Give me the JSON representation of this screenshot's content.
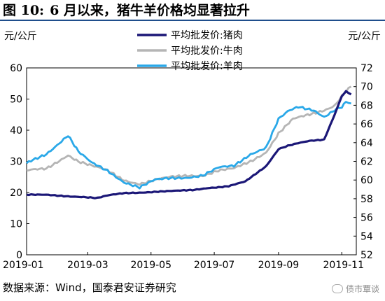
{
  "figure": {
    "title_no": "图 10:",
    "title_text": "6 月以来，猪牛羊价格均显著拉升",
    "source": "数据来源：Wind，国泰君安证券研究",
    "watermark": "债市覃谈"
  },
  "chart_data": {
    "type": "line",
    "left_unit": "元/公斤",
    "right_unit": "元/公斤",
    "ylim_left": [
      0,
      60
    ],
    "yticks_left": [
      0,
      10,
      20,
      30,
      40,
      50,
      60
    ],
    "ylim_right": [
      52,
      72
    ],
    "yticks_right": [
      52,
      54,
      56,
      58,
      60,
      62,
      64,
      66,
      68,
      70,
      72
    ],
    "xlim": [
      "2019-01-01",
      "2019-11-15"
    ],
    "xticks": [
      "2019-01",
      "2019-03",
      "2019-05",
      "2019-07",
      "2019-09",
      "2019-11"
    ],
    "grid": false,
    "legend_position": "top-right",
    "series": [
      {
        "name": "平均批发价:猪肉",
        "axis": "left",
        "color": "#1b1777",
        "x": [
          "2019-01-01",
          "2019-01-20",
          "2019-02-10",
          "2019-02-25",
          "2019-03-10",
          "2019-03-20",
          "2019-04-05",
          "2019-04-20",
          "2019-05-10",
          "2019-05-25",
          "2019-06-10",
          "2019-06-25",
          "2019-07-05",
          "2019-07-15",
          "2019-07-31",
          "2019-08-10",
          "2019-08-20",
          "2019-09-01",
          "2019-09-10",
          "2019-09-20",
          "2019-10-01",
          "2019-10-15",
          "2019-10-25",
          "2019-11-01",
          "2019-11-05",
          "2019-11-10"
        ],
        "values": [
          19.3,
          19.2,
          18.8,
          18.6,
          18.2,
          19.0,
          19.8,
          20.0,
          20.3,
          20.5,
          20.8,
          21.5,
          21.7,
          22.0,
          23.5,
          26.0,
          28.5,
          34.0,
          35.0,
          35.8,
          36.5,
          37.0,
          45.0,
          51.0,
          52.5,
          51.5
        ]
      },
      {
        "name": "平均批发价:牛肉",
        "axis": "right",
        "color": "#b5b5b5",
        "x": [
          "2019-01-01",
          "2019-01-20",
          "2019-02-10",
          "2019-02-20",
          "2019-03-05",
          "2019-03-20",
          "2019-04-05",
          "2019-04-20",
          "2019-05-05",
          "2019-05-20",
          "2019-06-05",
          "2019-06-20",
          "2019-07-05",
          "2019-07-20",
          "2019-08-05",
          "2019-08-20",
          "2019-09-01",
          "2019-09-15",
          "2019-10-01",
          "2019-10-15",
          "2019-10-25",
          "2019-11-01",
          "2019-11-05",
          "2019-11-10"
        ],
        "values": [
          61.0,
          61.2,
          62.7,
          62.0,
          61.5,
          61.0,
          60.0,
          59.6,
          60.0,
          60.3,
          60.5,
          60.5,
          61.0,
          61.2,
          62.0,
          63.0,
          65.0,
          66.5,
          67.0,
          67.5,
          68.0,
          69.0,
          69.5,
          70.0
        ]
      },
      {
        "name": "平均批发价:羊肉",
        "axis": "right",
        "color": "#2aa8e8",
        "x": [
          "2019-01-01",
          "2019-01-20",
          "2019-02-10",
          "2019-02-20",
          "2019-03-05",
          "2019-03-20",
          "2019-04-05",
          "2019-04-20",
          "2019-05-05",
          "2019-05-20",
          "2019-06-05",
          "2019-06-20",
          "2019-07-05",
          "2019-07-20",
          "2019-08-05",
          "2019-08-20",
          "2019-09-01",
          "2019-09-10",
          "2019-09-20",
          "2019-10-05",
          "2019-10-15",
          "2019-10-25",
          "2019-11-01",
          "2019-11-05",
          "2019-11-10"
        ],
        "values": [
          61.8,
          62.8,
          64.8,
          63.0,
          61.8,
          61.0,
          59.8,
          59.2,
          60.0,
          60.2,
          60.3,
          60.5,
          61.3,
          61.5,
          62.8,
          63.5,
          66.5,
          67.3,
          67.8,
          67.5,
          66.8,
          67.5,
          67.8,
          68.3,
          68.2
        ]
      }
    ]
  }
}
